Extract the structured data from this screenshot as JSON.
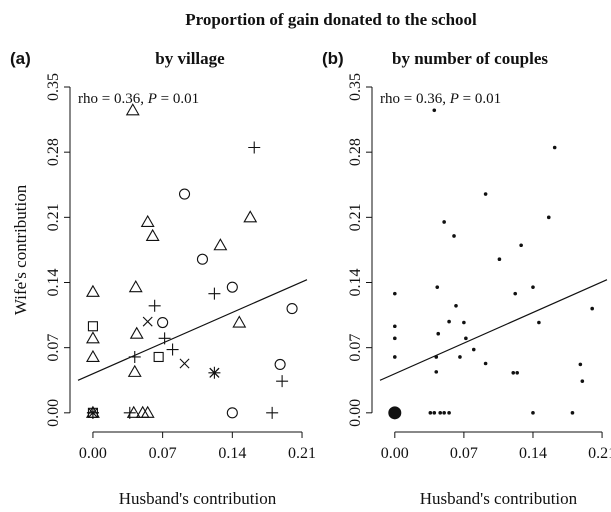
{
  "figure_title": "Proportion of gain donated to the school",
  "chart_data": [
    {
      "type": "scatter",
      "panel_letter": "(a)",
      "title": "by village",
      "xlabel": "Husband's contribution",
      "ylabel": "Wife's contribution",
      "xlim": [
        -0.015,
        0.215
      ],
      "ylim": [
        -0.012,
        0.35
      ],
      "xticks": [
        "0.00",
        "0.07",
        "0.14",
        "0.21"
      ],
      "yticks": [
        "0.00",
        "0.07",
        "0.14",
        "0.21",
        "0.28",
        "0.35"
      ],
      "annotation": {
        "rho": "rho = 0.36, ",
        "p_label": "P",
        "p_value": " = 0.01"
      },
      "regression_line": {
        "intercept": 0.042,
        "slope": 0.47
      },
      "marker_types": [
        "square",
        "triangle",
        "circle",
        "plus",
        "cross",
        "star"
      ],
      "series": [
        {
          "marker": "square",
          "points": [
            [
              0.0,
              0.093
            ],
            [
              0.0,
              0.0
            ],
            [
              0.066,
              0.06
            ]
          ]
        },
        {
          "marker": "triangle",
          "points": [
            [
              0.0,
              0.13
            ],
            [
              0.0,
              0.08
            ],
            [
              0.0,
              0.06
            ],
            [
              0.0,
              0.0
            ],
            [
              0.04,
              0.325
            ],
            [
              0.043,
              0.135
            ],
            [
              0.044,
              0.085
            ],
            [
              0.042,
              0.044
            ],
            [
              0.041,
              0.0
            ],
            [
              0.05,
              0.0
            ],
            [
              0.055,
              0.0
            ],
            [
              0.055,
              0.205
            ],
            [
              0.06,
              0.19
            ],
            [
              0.128,
              0.18
            ],
            [
              0.158,
              0.21
            ],
            [
              0.147,
              0.097
            ]
          ]
        },
        {
          "marker": "circle",
          "points": [
            [
              0.092,
              0.235
            ],
            [
              0.11,
              0.165
            ],
            [
              0.07,
              0.097
            ],
            [
              0.14,
              0.135
            ],
            [
              0.14,
              0.0
            ],
            [
              0.188,
              0.052
            ],
            [
              0.2,
              0.112
            ]
          ]
        },
        {
          "marker": "plus",
          "points": [
            [
              0.0,
              0.0
            ],
            [
              0.042,
              0.06
            ],
            [
              0.062,
              0.115
            ],
            [
              0.072,
              0.08
            ],
            [
              0.08,
              0.068
            ],
            [
              0.122,
              0.128
            ],
            [
              0.162,
              0.285
            ],
            [
              0.19,
              0.034
            ],
            [
              0.18,
              0.0
            ],
            [
              0.037,
              0.0
            ]
          ]
        },
        {
          "marker": "cross",
          "points": [
            [
              0.055,
              0.098
            ],
            [
              0.092,
              0.053
            ],
            [
              0.122,
              0.043
            ]
          ]
        },
        {
          "marker": "star",
          "points": [
            [
              0.0,
              0.0
            ],
            [
              0.122,
              0.043
            ]
          ]
        }
      ]
    },
    {
      "type": "scatter",
      "panel_letter": "(b)",
      "title": "by number of couples",
      "xlabel": "Husband's contribution",
      "ylabel": "",
      "xlim": [
        -0.015,
        0.215
      ],
      "ylim": [
        -0.012,
        0.35
      ],
      "xticks": [
        "0.00",
        "0.07",
        "0.14",
        "0.21"
      ],
      "yticks": [
        "0.00",
        "0.07",
        "0.14",
        "0.21",
        "0.28",
        "0.35"
      ],
      "annotation": {
        "rho": "rho = 0.36, ",
        "p_label": "P",
        "p_value": " = 0.01"
      },
      "regression_line": {
        "intercept": 0.042,
        "slope": 0.47
      },
      "marker_types": [
        "dot"
      ],
      "points": [
        [
          0.0,
          0.0,
          8
        ],
        [
          0.0,
          0.128,
          1
        ],
        [
          0.0,
          0.093,
          1
        ],
        [
          0.0,
          0.08,
          1
        ],
        [
          0.0,
          0.06,
          1
        ],
        [
          0.036,
          0.0,
          1
        ],
        [
          0.04,
          0.0,
          1
        ],
        [
          0.046,
          0.0,
          1
        ],
        [
          0.05,
          0.0,
          1
        ],
        [
          0.055,
          0.0,
          1
        ],
        [
          0.04,
          0.325,
          1
        ],
        [
          0.043,
          0.135,
          1
        ],
        [
          0.044,
          0.085,
          1
        ],
        [
          0.042,
          0.06,
          1
        ],
        [
          0.042,
          0.044,
          1
        ],
        [
          0.05,
          0.205,
          1
        ],
        [
          0.06,
          0.19,
          1
        ],
        [
          0.055,
          0.098,
          1
        ],
        [
          0.062,
          0.115,
          1
        ],
        [
          0.066,
          0.06,
          1
        ],
        [
          0.07,
          0.097,
          1
        ],
        [
          0.072,
          0.08,
          1
        ],
        [
          0.08,
          0.068,
          1
        ],
        [
          0.092,
          0.235,
          1
        ],
        [
          0.092,
          0.053,
          1
        ],
        [
          0.106,
          0.165,
          1
        ],
        [
          0.122,
          0.128,
          1
        ],
        [
          0.128,
          0.18,
          1
        ],
        [
          0.12,
          0.043,
          1
        ],
        [
          0.124,
          0.043,
          1
        ],
        [
          0.14,
          0.135,
          1
        ],
        [
          0.14,
          0.0,
          1
        ],
        [
          0.146,
          0.097,
          1
        ],
        [
          0.156,
          0.21,
          1
        ],
        [
          0.162,
          0.285,
          1
        ],
        [
          0.18,
          0.0,
          1
        ],
        [
          0.188,
          0.052,
          1
        ],
        [
          0.19,
          0.034,
          1
        ],
        [
          0.2,
          0.112,
          1
        ]
      ]
    }
  ]
}
